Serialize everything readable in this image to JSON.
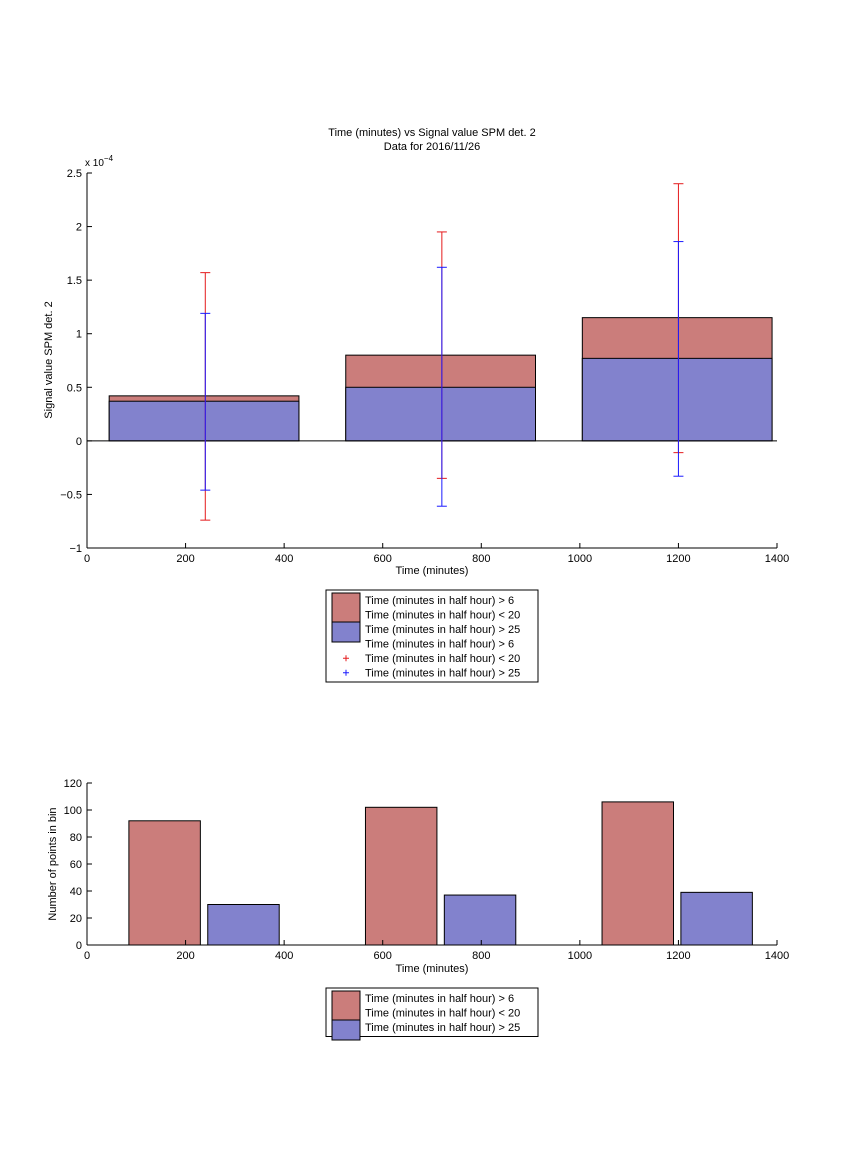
{
  "colors": {
    "bar_upper": "#cb7d7b",
    "bar_lower": "#8282cd",
    "err_upper": "#e41a1c",
    "err_lower": "#1a1aff",
    "axis": "#000000"
  },
  "chart_data": [
    {
      "type": "bar",
      "title": "Time (minutes) vs Signal value SPM det. 2",
      "subtitle": "Data for 2016/11/26",
      "xlabel": "Time (minutes)",
      "ylabel": "Signal value SPM det. 2",
      "y_scale_label": "x 10",
      "y_scale_exp": "−4",
      "xlim": [
        0,
        1400
      ],
      "ylim": [
        -1,
        2.5
      ],
      "x_ticks": [
        0,
        200,
        400,
        600,
        800,
        1000,
        1200,
        1400
      ],
      "y_ticks": [
        -1,
        -0.5,
        0,
        0.5,
        1,
        1.5,
        2,
        2.5
      ],
      "y_tick_labels": [
        "−1",
        "−0.5",
        "0",
        "0.5",
        "1",
        "1.5",
        "2",
        "2.5"
      ],
      "grid": false,
      "bars": [
        {
          "x0": 45,
          "x1": 430,
          "upper": 0.42,
          "lower": 0.37
        },
        {
          "x0": 525,
          "x1": 910,
          "upper": 0.8,
          "lower": 0.5
        },
        {
          "x0": 1005,
          "x1": 1390,
          "upper": 1.15,
          "lower": 0.77
        }
      ],
      "errorbars": [
        {
          "series": "upper",
          "x": 240,
          "low": -0.74,
          "high": 1.57
        },
        {
          "series": "lower",
          "x": 240,
          "low": -0.46,
          "high": 1.19
        },
        {
          "series": "upper",
          "x": 720,
          "low": -0.35,
          "high": 1.95
        },
        {
          "series": "lower",
          "x": 720,
          "low": -0.61,
          "high": 1.62
        },
        {
          "series": "upper",
          "x": 1200,
          "low": -0.11,
          "high": 2.4
        },
        {
          "series": "lower",
          "x": 1200,
          "low": -0.33,
          "high": 1.86
        }
      ],
      "legend": {
        "position": "below",
        "entries": [
          {
            "kind": "patch",
            "color": "bar_upper",
            "lines": [
              "Time (minutes in half hour) > 6",
              "Time (minutes in half hour) < 20"
            ]
          },
          {
            "kind": "patch",
            "color": "bar_lower",
            "lines": [
              "Time (minutes in half hour) > 25"
            ]
          },
          {
            "kind": "text",
            "lines": [
              "Time (minutes in half hour) > 6"
            ]
          },
          {
            "kind": "marker",
            "color": "err_upper",
            "lines": [
              "Time (minutes in half hour) < 20"
            ]
          },
          {
            "kind": "marker",
            "color": "err_lower",
            "lines": [
              "Time (minutes in half hour) > 25"
            ]
          }
        ]
      }
    },
    {
      "type": "bar",
      "xlabel": "Time (minutes)",
      "ylabel": "Number of points in bin",
      "xlim": [
        0,
        1400
      ],
      "ylim": [
        0,
        120
      ],
      "x_ticks": [
        0,
        200,
        400,
        600,
        800,
        1000,
        1200,
        1400
      ],
      "y_ticks": [
        0,
        20,
        40,
        60,
        80,
        100,
        120
      ],
      "grid": false,
      "bars": [
        {
          "series": "upper",
          "x0": 85,
          "x1": 230,
          "value": 92
        },
        {
          "series": "lower",
          "x0": 245,
          "x1": 390,
          "value": 30
        },
        {
          "series": "upper",
          "x0": 565,
          "x1": 710,
          "value": 102
        },
        {
          "series": "lower",
          "x0": 725,
          "x1": 870,
          "value": 37
        },
        {
          "series": "upper",
          "x0": 1045,
          "x1": 1190,
          "value": 106
        },
        {
          "series": "lower",
          "x0": 1205,
          "x1": 1350,
          "value": 39
        }
      ],
      "legend": {
        "position": "below",
        "entries": [
          {
            "kind": "patch",
            "color": "bar_upper",
            "lines": [
              "Time (minutes in half hour) > 6",
              "Time (minutes in half hour) < 20"
            ]
          },
          {
            "kind": "patch",
            "color": "bar_lower",
            "lines": [
              "Time (minutes in half hour) > 25"
            ]
          }
        ]
      }
    }
  ]
}
